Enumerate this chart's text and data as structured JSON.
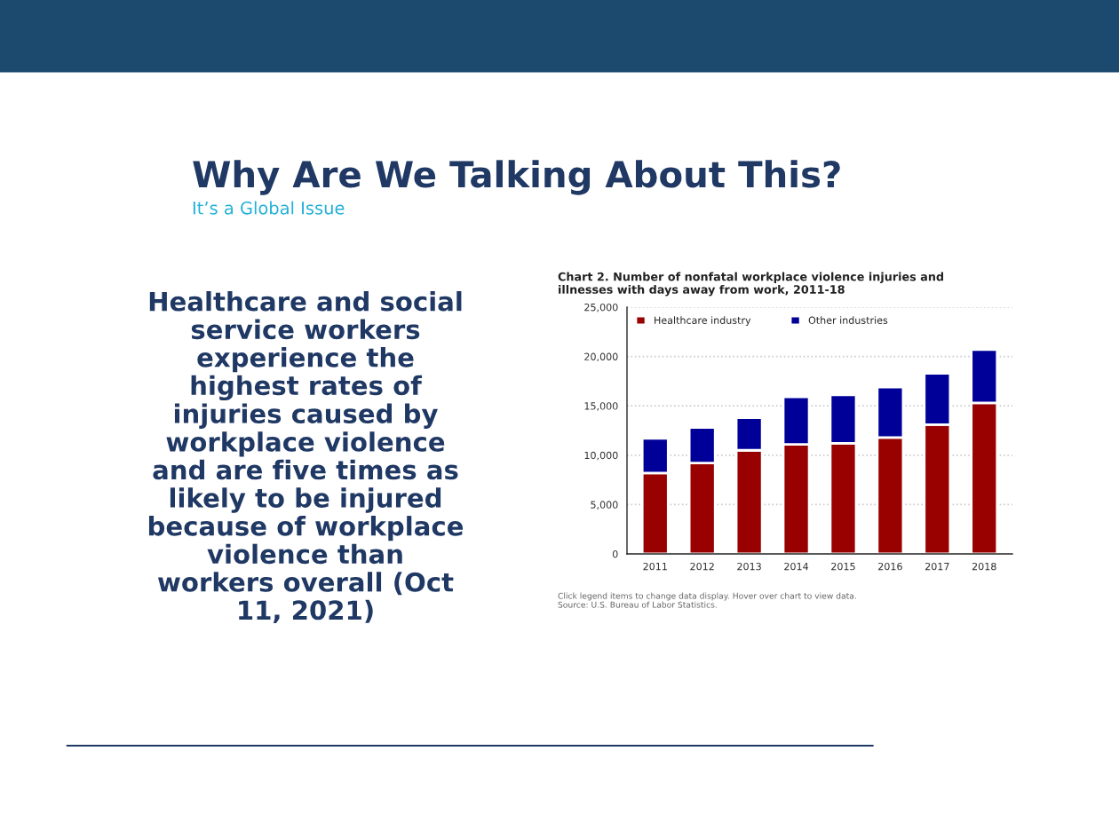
{
  "chart_data": {
    "type": "bar",
    "title": "Why Are We Talking About This?",
    "subtitle": "It’s a Global Issue",
    "annotations": [
      "Healthcare and social service workers experience the highest rates of injuries caused by workplace violence and are five times as likely to be injured because of workplace violence than workers overall (Oct 11, 2021)",
      "Chart 2. Number of nonfatal workplace violence injuries and illnesses with days away from work, 2011-18",
      "Click legend items to change data display. Hover over chart to view data.",
      "Source: U.S. Bureau of Labor Statistics."
    ],
    "categories": [
      "2011",
      "2012",
      "2013",
      "2014",
      "2015",
      "2016",
      "2017",
      "2018"
    ],
    "stacked": true,
    "series": [
      {
        "name": "Healthcare industry",
        "color": "#990000",
        "values": [
          8200,
          9200,
          10500,
          11100,
          11200,
          11800,
          13100,
          15300
        ]
      },
      {
        "name": "Other industries",
        "color": "#000099",
        "values": [
          3500,
          3600,
          3300,
          4800,
          4900,
          5100,
          5200,
          5400
        ]
      }
    ],
    "ylim": [
      0,
      25000
    ],
    "yticks": [
      {
        "value": 0,
        "label": "0"
      },
      {
        "value": 5000,
        "label": "5,000"
      },
      {
        "value": 10000,
        "label": "10,000"
      },
      {
        "value": 15000,
        "label": "15,000"
      },
      {
        "value": 20000,
        "label": "20,000"
      },
      {
        "value": 25000,
        "label": "25,000"
      }
    ],
    "grid": "y",
    "legend": "top left"
  }
}
